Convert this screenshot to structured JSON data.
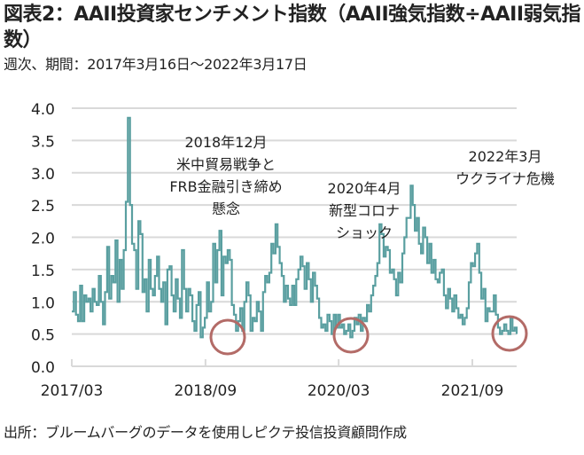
{
  "title": "図表2：AAII投資家センチメント指数（AAII強気指数÷AAII弱気指数）",
  "subtitle": "週次、期間：2017年3月16日～2022年3月17日",
  "source": "出所：ブルームバーグのデータを使用しピクテ投信投資顧問作成",
  "colors": {
    "line": "#5a9fa0",
    "circle": "#b36b67",
    "grid": "#d9d9d9"
  },
  "chart_data": {
    "type": "line",
    "title": "AAII投資家センチメント指数（AAII強気指数÷AAII弱気指数）",
    "xlabel": "",
    "ylabel": "",
    "ylim": [
      0,
      4
    ],
    "yticks": [
      "0.0",
      "0.5",
      "1.0",
      "1.5",
      "2.0",
      "2.5",
      "3.0",
      "3.5",
      "4.0"
    ],
    "xticks": [
      "2017/03",
      "2018/09",
      "2020/03",
      "2021/09"
    ],
    "xrange": [
      "2017/03",
      "2022/03"
    ],
    "grid": true,
    "series": [
      {
        "name": "AAII強気指数÷AAII弱気指数",
        "x_start": "2017/03/16",
        "x_end": "2022/03/17",
        "frequency": "biweekly-approx",
        "values": [
          0.85,
          1.15,
          0.8,
          0.7,
          1.25,
          0.7,
          1.1,
          1.0,
          1.05,
          0.85,
          1.2,
          1.0,
          0.95,
          1.4,
          1.0,
          0.65,
          1.15,
          1.85,
          1.05,
          1.4,
          1.3,
          1.95,
          1.0,
          1.65,
          1.2,
          1.8,
          2.55,
          3.85,
          2.5,
          1.9,
          1.8,
          1.2,
          2.25,
          2.05,
          1.15,
          1.35,
          0.85,
          1.65,
          1.2,
          1.1,
          1.4,
          1.7,
          1.2,
          1.0,
          1.3,
          0.65,
          1.5,
          1.55,
          1.1,
          0.85,
          1.35,
          1.05,
          0.75,
          1.8,
          1.2,
          0.85,
          1.2,
          1.1,
          0.7,
          0.55,
          0.95,
          1.15,
          0.45,
          0.6,
          0.75,
          1.3,
          0.85,
          1.0,
          1.9,
          1.3,
          1.8,
          2.1,
          1.1,
          1.7,
          1.6,
          1.8,
          1.65,
          0.95,
          0.8,
          0.55,
          0.7,
          0.9,
          0.55,
          1.0,
          1.3,
          1.1,
          0.55,
          0.75,
          0.7,
          1.0,
          0.85,
          0.55,
          1.15,
          1.4,
          1.3,
          1.45,
          1.9,
          1.75,
          2.2,
          1.85,
          1.6,
          1.4,
          1.0,
          1.25,
          1.05,
          0.95,
          1.25,
          0.95,
          1.35,
          1.5,
          1.7,
          1.55,
          1.2,
          1.6,
          1.35,
          1.0,
          1.45,
          1.25,
          1.05,
          0.75,
          0.6,
          0.65,
          0.55,
          0.8,
          0.7,
          0.5,
          0.8,
          0.6,
          0.8,
          0.6,
          0.65,
          0.5,
          0.55,
          0.65,
          0.45,
          0.55,
          0.75,
          0.65,
          0.8,
          0.55,
          0.75,
          0.7,
          0.95,
          0.85,
          1.1,
          1.25,
          1.4,
          1.6,
          2.2,
          2.05,
          1.7,
          1.85,
          1.8,
          1.45,
          1.5,
          1.35,
          1.1,
          1.45,
          1.3,
          1.75,
          2.0,
          2.3,
          2.3,
          2.8,
          2.5,
          2.1,
          2.3,
          1.9,
          1.75,
          2.15,
          2.0,
          1.6,
          1.9,
          1.45,
          1.65,
          1.35,
          1.3,
          1.45,
          1.5,
          1.1,
          0.9,
          1.2,
          1.05,
          0.85,
          1.1,
          0.9,
          0.75,
          0.8,
          0.65,
          0.75,
          0.9,
          1.3,
          1.6,
          1.55,
          1.75,
          1.9,
          1.45,
          1.05,
          1.2,
          0.7,
          0.9,
          0.85,
          0.85,
          1.1,
          0.8,
          0.6,
          0.5,
          0.55,
          0.65,
          0.55,
          0.5,
          0.75,
          0.55,
          0.6,
          0.5
        ]
      }
    ],
    "annotations": [
      {
        "text_lines": [
          "2018年12月",
          "米中貿易戦争と",
          "FRB金融引き締め",
          "懸念"
        ],
        "x": "2018/12",
        "y": 0.5
      },
      {
        "text_lines": [
          "2020年4月",
          "新型コロナ",
          "ショック"
        ],
        "x": "2020/04",
        "y": 0.5
      },
      {
        "text_lines": [
          "2022年3月",
          "ウクライナ危機"
        ],
        "x": "2022/03",
        "y": 0.5
      }
    ]
  }
}
